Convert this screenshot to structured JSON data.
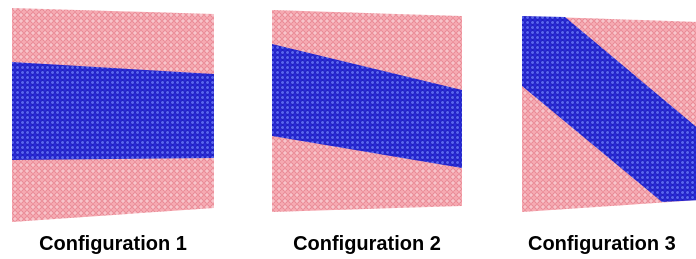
{
  "panels": [
    {
      "label": "Configuration 1"
    },
    {
      "label": "Configuration 2"
    },
    {
      "label": "Configuration 3"
    }
  ]
}
